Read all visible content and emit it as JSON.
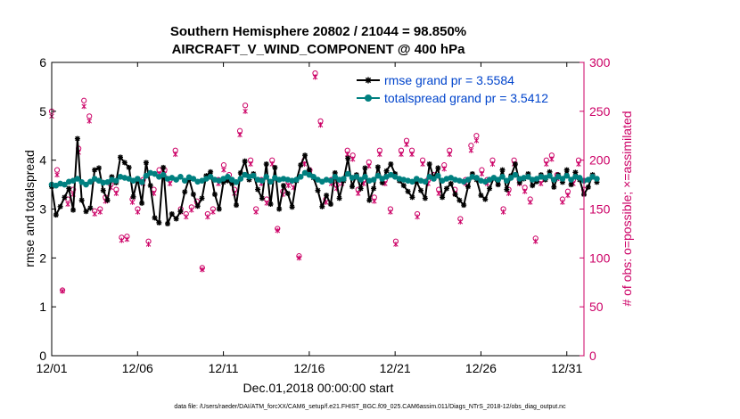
{
  "chart_data": {
    "type": "line",
    "title_line1": "Southern Hemisphere 20802 / 21044 = 98.850%",
    "title_line2": "AIRCRAFT_V_WIND_COMPONENT @ 400 hPa",
    "xlabel": "Dec.01,2018 00:00:00 start",
    "ylabel_left": "rmse and totalspread",
    "ylabel_right": "# of obs: o=possible; ×=assimilated",
    "footer": "data file: /Users/raeder/DAI/ATM_forcXX/CAM6_setup/f.e21.FHIST_BGC.f09_025.CAM6assim.011/Diags_NTrS_2018-12/obs_diag_output.nc",
    "xlim": [
      0,
      31
    ],
    "ylim_left": [
      0,
      6
    ],
    "ylim_right": [
      0,
      300
    ],
    "x_ticks": [
      0,
      5,
      10,
      15,
      20,
      25,
      30
    ],
    "x_tick_labels": [
      "12/01",
      "12/06",
      "12/11",
      "12/16",
      "12/21",
      "12/26",
      "12/31"
    ],
    "y_ticks_left": [
      0,
      1,
      2,
      3,
      4,
      5,
      6
    ],
    "y_tick_labels_left": [
      "0",
      "1",
      "2",
      "3",
      "4",
      "5",
      "6"
    ],
    "y_ticks_right": [
      0,
      50,
      100,
      150,
      200,
      250,
      300
    ],
    "y_tick_labels_right": [
      "0",
      "50",
      "100",
      "150",
      "200",
      "250",
      "300"
    ],
    "legend_location": "top-right",
    "colors": {
      "rmse": "#000000",
      "spread": "#008080",
      "obs": "#cc0066",
      "right_axis": "#cc0066"
    },
    "x_step": 0.25,
    "series": [
      {
        "name": "rmse grand pr = 3.5584",
        "key": "rmse",
        "values": [
          3.46,
          2.88,
          3.05,
          3.24,
          3.42,
          2.98,
          4.44,
          3.18,
          2.95,
          3.02,
          3.8,
          3.84,
          3.38,
          3.18,
          3.66,
          3.54,
          4.06,
          3.95,
          3.85,
          3.25,
          3.62,
          3.12,
          3.95,
          3.48,
          2.82,
          2.72,
          3.85,
          2.7,
          2.9,
          2.8,
          2.95,
          3.35,
          3.62,
          3.3,
          3.06,
          3.22,
          3.68,
          3.76,
          3.3,
          3.0,
          3.55,
          3.58,
          3.52,
          3.08,
          3.74,
          3.98,
          3.6,
          3.72,
          3.4,
          3.22,
          3.92,
          3.1,
          3.85,
          3.0,
          3.48,
          3.32,
          3.04,
          3.58,
          3.9,
          4.1,
          3.8,
          3.64,
          3.38,
          3.05,
          3.28,
          3.1,
          3.74,
          3.22,
          3.58,
          4.04,
          3.46,
          3.7,
          3.42,
          3.84,
          3.18,
          3.42,
          3.86,
          3.54,
          3.78,
          3.92,
          3.72,
          3.58,
          3.48,
          3.36,
          3.24,
          3.56,
          3.38,
          3.22,
          3.92,
          3.64,
          3.84,
          3.24,
          3.42,
          3.52,
          3.3,
          3.18,
          3.08,
          3.46,
          3.72,
          3.6,
          3.28,
          3.2,
          3.42,
          3.64,
          3.5,
          3.8,
          3.4,
          3.68,
          3.92,
          3.54,
          3.62,
          3.72,
          3.48,
          3.56,
          3.7,
          3.6,
          3.76,
          3.45,
          3.7,
          3.55,
          3.8,
          3.5,
          3.75,
          3.6,
          3.3,
          3.45,
          3.7,
          3.55
        ]
      },
      {
        "name": "totalspread grand pr = 3.5412",
        "key": "spread",
        "values": [
          3.5,
          3.48,
          3.52,
          3.5,
          3.56,
          3.58,
          3.62,
          3.55,
          3.5,
          3.56,
          3.62,
          3.58,
          3.54,
          3.55,
          3.6,
          3.58,
          3.66,
          3.64,
          3.62,
          3.58,
          3.62,
          3.55,
          3.68,
          3.74,
          3.72,
          3.66,
          3.7,
          3.62,
          3.64,
          3.6,
          3.66,
          3.58,
          3.65,
          3.62,
          3.56,
          3.58,
          3.62,
          3.66,
          3.6,
          3.58,
          3.62,
          3.66,
          3.6,
          3.55,
          3.62,
          3.7,
          3.66,
          3.68,
          3.6,
          3.58,
          3.66,
          3.56,
          3.64,
          3.6,
          3.62,
          3.6,
          3.58,
          3.6,
          3.66,
          3.74,
          3.7,
          3.66,
          3.6,
          3.56,
          3.6,
          3.58,
          3.66,
          3.6,
          3.62,
          3.72,
          3.64,
          3.66,
          3.6,
          3.66,
          3.58,
          3.6,
          3.68,
          3.62,
          3.66,
          3.7,
          3.66,
          3.62,
          3.6,
          3.58,
          3.56,
          3.62,
          3.58,
          3.56,
          3.66,
          3.62,
          3.68,
          3.58,
          3.62,
          3.64,
          3.6,
          3.58,
          3.56,
          3.6,
          3.66,
          3.64,
          3.58,
          3.56,
          3.6,
          3.64,
          3.6,
          3.66,
          3.58,
          3.64,
          3.7,
          3.62,
          3.64,
          3.66,
          3.6,
          3.62,
          3.66,
          3.64,
          3.68,
          3.6,
          3.66,
          3.62,
          3.68,
          3.6,
          3.66,
          3.64,
          3.58,
          3.6,
          3.66,
          3.62
        ]
      }
    ],
    "obs_possible": [
      250,
      190,
      67,
      160,
      170,
      212,
      261,
      245,
      148,
      150,
      162,
      175,
      170,
      121,
      122,
      160,
      150,
      180,
      117,
      170,
      190,
      190,
      180,
      210,
      150,
      145,
      152,
      158,
      90,
      145,
      150,
      180,
      195,
      185,
      170,
      230,
      256,
      200,
      150,
      180,
      160,
      200,
      130,
      168,
      178,
      175,
      102,
      200,
      190,
      289,
      240,
      160,
      180,
      175,
      180,
      210,
      205,
      170,
      180,
      198,
      162,
      210,
      180,
      150,
      117,
      210,
      220,
      210,
      145,
      200,
      180,
      185,
      170,
      195,
      210,
      170,
      140,
      180,
      215,
      225,
      190,
      180,
      200,
      180,
      150,
      170,
      200,
      180,
      172,
      160,
      120,
      180,
      200,
      205,
      185,
      160,
      168,
      180,
      200,
      170
    ],
    "obs_assimilated": [
      245,
      185,
      66,
      155,
      165,
      208,
      255,
      240,
      145,
      147,
      158,
      172,
      166,
      118,
      119,
      157,
      147,
      176,
      114,
      166,
      186,
      186,
      176,
      206,
      147,
      142,
      149,
      154,
      88,
      142,
      147,
      176,
      190,
      180,
      166,
      226,
      250,
      196,
      147,
      176,
      156,
      196,
      128,
      165,
      174,
      172,
      100,
      196,
      186,
      285,
      236,
      157,
      176,
      171,
      176,
      206,
      201,
      166,
      176,
      194,
      158,
      206,
      176,
      147,
      114,
      206,
      216,
      206,
      142,
      196,
      176,
      181,
      166,
      191,
      206,
      166,
      137,
      176,
      210,
      220,
      186,
      176,
      196,
      176,
      147,
      166,
      196,
      176,
      168,
      157,
      117,
      176,
      196,
      201,
      181,
      157,
      164,
      176,
      196,
      166
    ]
  }
}
